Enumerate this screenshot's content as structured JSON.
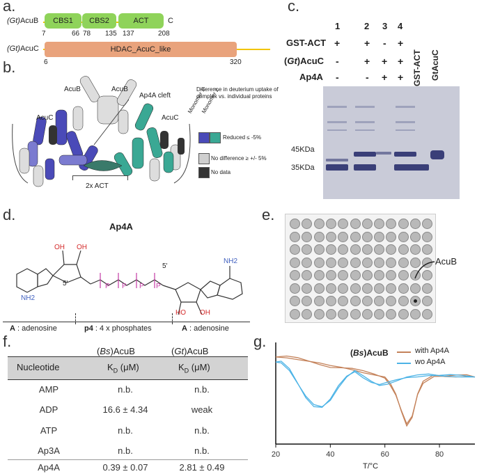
{
  "panel_labels": {
    "a": "a.",
    "b": "b.",
    "c": "c.",
    "d": "d.",
    "e": "e.",
    "f": "f.",
    "g": "g."
  },
  "panel_a": {
    "acub_name_prefix": "(Gt)",
    "acub_name": "AcuB",
    "acuc_name": "AcuC",
    "domains": [
      {
        "label": "CBS1",
        "start": "7",
        "end": "66"
      },
      {
        "label": "CBS2",
        "start": "78",
        "end": "135"
      },
      {
        "label": "ACT",
        "start": "137",
        "end": "208"
      }
    ],
    "c_term": "C",
    "acuc_domain": {
      "label": "HDAC_AcuC_like",
      "start": "6",
      "end": "320"
    },
    "colors": {
      "cbs": "#8fd35a",
      "hdac": "#e9a37c",
      "line": "#f2c400"
    }
  },
  "panel_b": {
    "labels": {
      "acub_left": "AcuB",
      "acub_right": "AcuB",
      "cleft": "Ap4A cleft",
      "acuc_left": "AcuC",
      "acuc_right": "AcuC",
      "act": "2x ACT"
    },
    "legend_title": "Difference in deuterium uptake of complex vs. individual proteins",
    "monomer1": "Monomer 1",
    "monomer2": "Monomer 2",
    "legend_items": [
      {
        "label": "Reduced ≤ -5%",
        "colors": [
          "#4a4ab8",
          "#3aa894"
        ]
      },
      {
        "label": "No difference ≥ +/- 5%",
        "colors": [
          "#cfcfcf"
        ]
      },
      {
        "label": "No data",
        "colors": [
          "#333333"
        ]
      }
    ]
  },
  "panel_c": {
    "lane_numbers": [
      "1",
      "2",
      "3",
      "4"
    ],
    "row_labels": [
      "GST-ACT",
      "(Gt)AcuC",
      "Ap4A"
    ],
    "rows": [
      [
        "+",
        "+",
        "-",
        "+"
      ],
      [
        "-",
        "+",
        "+",
        "+"
      ],
      [
        "-",
        "-",
        "+",
        "+"
      ]
    ],
    "extra_lanes": [
      "GST-ACT",
      "GtAcuC"
    ],
    "markers": [
      "45KDa",
      "35KDa"
    ]
  },
  "panel_d": {
    "title": "Ap4A",
    "sections": [
      {
        "bold": "A",
        "text": " : adenosine"
      },
      {
        "bold": "p4",
        "text": " : 4 x phosphates"
      },
      {
        "bold": "A",
        "text": " : adenosine"
      }
    ],
    "atoms": {
      "oh": "OH",
      "ho": "HO",
      "o": "O",
      "p": "P",
      "n": "N",
      "nh2": "NH2",
      "five_prime": "5'"
    }
  },
  "panel_e": {
    "annotation": "AcuB",
    "rows": 8,
    "cols": 12
  },
  "panel_f": {
    "col_headers_org": [
      "(Bs)AcuB",
      "(Gt)AcuB"
    ],
    "header_nucleotide": "Nucleotide",
    "header_kd": "K",
    "header_kd_sub": "D",
    "header_kd_unit": " (μM)",
    "rows": [
      {
        "nuc": "AMP",
        "bs": "n.b.",
        "gt": "n.b."
      },
      {
        "nuc": "ADP",
        "bs": "16.6 ± 4.34",
        "gt": "weak"
      },
      {
        "nuc": "ATP",
        "bs": "n.b.",
        "gt": "n.b."
      },
      {
        "nuc": "Ap3A",
        "bs": "n.b.",
        "gt": "n.b."
      },
      {
        "nuc": "Ap4A",
        "bs": "0.39   ± 0.07",
        "gt": "2.81 ± 0.49"
      }
    ]
  },
  "chart_data": {
    "type": "line",
    "title": "(Bs)AcuB",
    "xlabel": "T/°C",
    "ylabel": "",
    "xlim": [
      20,
      93
    ],
    "xticks": [
      "20",
      "40",
      "60",
      "80"
    ],
    "legend_position": "top-right",
    "series": [
      {
        "name": "with Ap4A",
        "color": "#c4825a",
        "x": [
          20,
          24,
          28,
          32,
          36,
          40,
          44,
          48,
          52,
          56,
          60,
          62,
          64,
          66,
          68,
          70,
          72,
          74,
          78,
          82,
          86,
          90,
          93
        ],
        "y": [
          0.92,
          0.9,
          0.86,
          0.82,
          0.78,
          0.72,
          0.68,
          0.62,
          0.55,
          0.5,
          0.45,
          0.3,
          0.05,
          -0.35,
          -0.7,
          -0.5,
          0.05,
          0.35,
          0.5,
          0.46,
          0.45,
          0.46,
          0.45
        ]
      },
      {
        "name": "wo Ap4A",
        "color": "#4cb3e6",
        "x": [
          20,
          22,
          25,
          28,
          31,
          34,
          37,
          40,
          43,
          46,
          49,
          52,
          55,
          58,
          61,
          64,
          68,
          72,
          76,
          80,
          84,
          88,
          93
        ],
        "y": [
          0.8,
          0.78,
          0.6,
          0.3,
          0.0,
          -0.2,
          -0.25,
          -0.1,
          0.2,
          0.45,
          0.6,
          0.48,
          0.35,
          0.25,
          0.28,
          0.35,
          0.45,
          0.5,
          0.52,
          0.48,
          0.46,
          0.45,
          0.45
        ]
      }
    ]
  }
}
